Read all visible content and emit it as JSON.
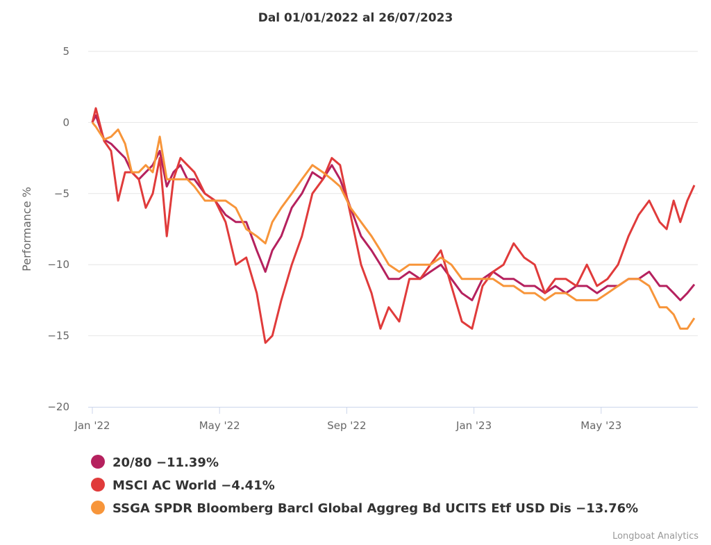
{
  "chart_data": {
    "type": "line",
    "title": "Dal 01/01/2022 al 26/07/2023",
    "xlabel": "",
    "ylabel": "Performance %",
    "x_unit": "months since 2022-01-01",
    "xlim": [
      0,
      19.0
    ],
    "ylim": [
      -20,
      5
    ],
    "y_ticks": [
      5,
      0,
      -5,
      -10,
      -15,
      -20
    ],
    "y_tick_labels": [
      "5",
      "0",
      "−5",
      "−10",
      "−15",
      "−20"
    ],
    "x_ticks": [
      0,
      4,
      8,
      12,
      16
    ],
    "x_tick_labels": [
      "Jan '22",
      "May '22",
      "Sep '22",
      "Jan '23",
      "May '23"
    ],
    "grid": true,
    "legend_position": "bottom-left",
    "x": [
      0,
      0.11,
      0.37,
      0.59,
      0.81,
      1.03,
      1.24,
      1.46,
      1.68,
      1.9,
      2.12,
      2.34,
      2.55,
      2.77,
      2.99,
      3.21,
      3.54,
      3.86,
      4.19,
      4.51,
      4.84,
      5.17,
      5.44,
      5.66,
      5.94,
      6.27,
      6.59,
      6.92,
      7.25,
      7.53,
      7.79,
      8.12,
      8.45,
      8.78,
      9.06,
      9.32,
      9.65,
      9.97,
      10.31,
      10.63,
      10.96,
      11.29,
      11.62,
      11.94,
      12.27,
      12.6,
      12.93,
      13.25,
      13.58,
      13.91,
      14.23,
      14.56,
      14.89,
      15.22,
      15.55,
      15.87,
      16.2,
      16.53,
      16.86,
      17.18,
      17.51,
      17.84,
      18.06,
      18.28,
      18.49,
      18.71,
      18.93
    ],
    "series": [
      {
        "name": "20/80",
        "legend_label": "20/80 −11.39%",
        "color": "#b5215e",
        "values": [
          0,
          0.5,
          -1.2,
          -1.5,
          -2,
          -2.5,
          -3.5,
          -4,
          -3.5,
          -3,
          -2,
          -4.5,
          -3.5,
          -3,
          -4,
          -4,
          -5,
          -5.5,
          -6.5,
          -7,
          -7,
          -9,
          -10.5,
          -9,
          -8,
          -6,
          -5,
          -3.5,
          -4,
          -3,
          -4,
          -6,
          -8,
          -9,
          -10,
          -11,
          -11,
          -10.5,
          -11,
          -10.5,
          -10,
          -11,
          -12,
          -12.5,
          -11,
          -10.5,
          -11,
          -11,
          -11.5,
          -11.5,
          -12,
          -11.5,
          -12,
          -11.5,
          -11.5,
          -12,
          -11.5,
          -11.5,
          -11,
          -11,
          -10.5,
          -11.5,
          -11.5,
          -12,
          -12.5,
          -12,
          -11.39
        ]
      },
      {
        "name": "MSCI AC World",
        "legend_label": "MSCI AC World −4.41%",
        "color": "#e03b3b",
        "values": [
          0,
          1,
          -1.3,
          -2,
          -5.5,
          -3.5,
          -3.5,
          -4,
          -6,
          -5,
          -2.5,
          -8,
          -4,
          -2.5,
          -3,
          -3.5,
          -5,
          -5.5,
          -7,
          -10,
          -9.5,
          -12,
          -15.5,
          -15,
          -12.5,
          -10,
          -8,
          -5,
          -4,
          -2.5,
          -3,
          -6.5,
          -10,
          -12,
          -14.5,
          -13,
          -14,
          -11,
          -11,
          -10,
          -9,
          -11.5,
          -14,
          -14.5,
          -11.5,
          -10.5,
          -10,
          -8.5,
          -9.5,
          -10,
          -12,
          -11,
          -11,
          -11.5,
          -10,
          -11.5,
          -11,
          -10,
          -8,
          -6.5,
          -5.5,
          -7,
          -7.5,
          -5.5,
          -7,
          -5.5,
          -4.41
        ]
      },
      {
        "name": "SSGA SPDR Bloomberg Barcl Global Aggreg Bd UCITS Etf USD Dis",
        "legend_label": "SSGA SPDR Bloomberg Barcl Global Aggreg Bd UCITS Etf USD Dis −13.76%",
        "color": "#f7953a",
        "values": [
          0,
          -0.3,
          -1.2,
          -1,
          -0.5,
          -1.5,
          -3.5,
          -3.5,
          -3,
          -3.5,
          -1,
          -4,
          -4,
          -4,
          -4,
          -4.5,
          -5.5,
          -5.5,
          -5.5,
          -6,
          -7.5,
          -8,
          -8.5,
          -7,
          -6,
          -5,
          -4,
          -3,
          -3.5,
          -4,
          -4.5,
          -6,
          -7,
          -8,
          -9,
          -10,
          -10.5,
          -10,
          -10,
          -10,
          -9.5,
          -10,
          -11,
          -11,
          -11,
          -11,
          -11.5,
          -11.5,
          -12,
          -12,
          -12.5,
          -12,
          -12,
          -12.5,
          -12.5,
          -12.5,
          -12,
          -11.5,
          -11,
          -11,
          -11.5,
          -13,
          -13,
          -13.5,
          -14.5,
          -14.5,
          -13.76
        ]
      }
    ]
  },
  "credits": "Longboat Analytics"
}
